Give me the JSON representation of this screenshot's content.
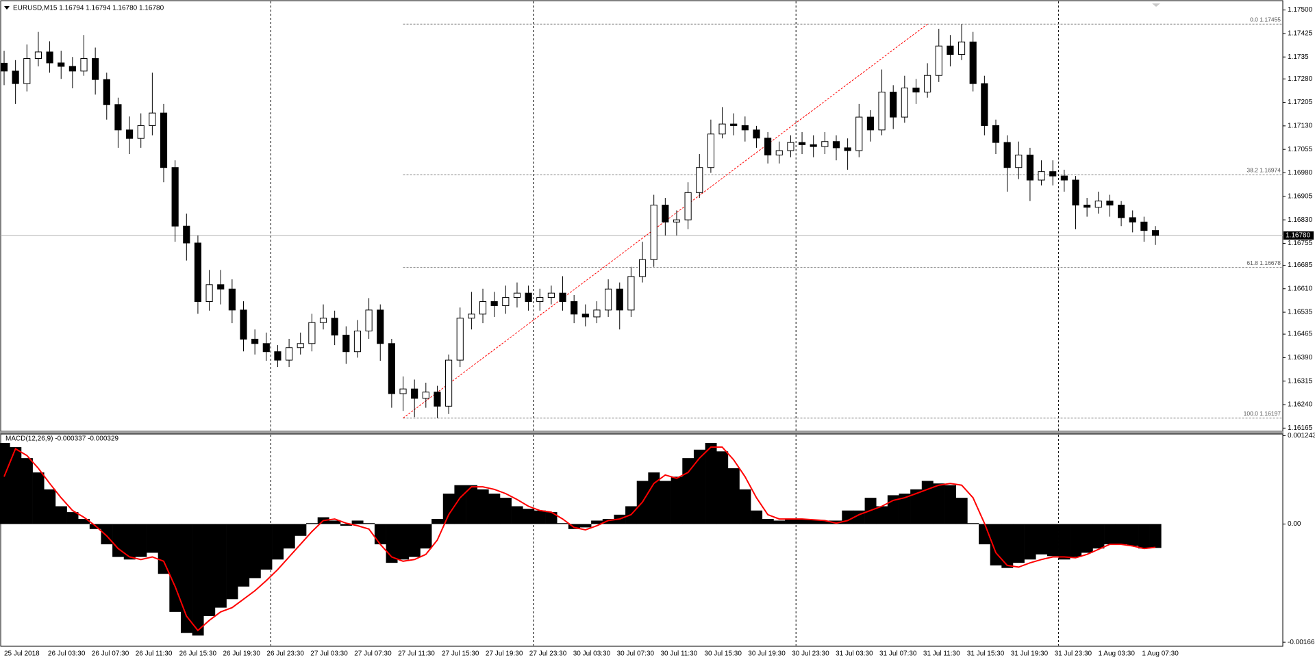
{
  "chart_data": [
    {
      "type": "candlestick",
      "title": "EURUSD,M15  1.16794 1.16794 1.16780 1.16780",
      "open": [
        1.1733,
        1.17305,
        1.17265,
        1.17345,
        1.17366,
        1.17331,
        1.1732,
        1.17305,
        1.17345,
        1.17278,
        1.17198,
        1.17117,
        1.1709,
        1.17131,
        1.17171,
        1.16997,
        1.1681,
        1.16756,
        1.16569,
        1.16623,
        1.16609,
        1.16542,
        1.16449,
        1.16435,
        1.16409,
        1.16382,
        1.16422,
        1.16435,
        1.16502,
        1.16516,
        1.16462,
        1.16409,
        1.16475,
        1.16542,
        1.16435,
        1.16275,
        1.1629,
        1.1626,
        1.1628,
        1.16235,
        1.16382,
        1.16516,
        1.16529,
        1.16569,
        1.16556,
        1.16582,
        1.16596,
        1.16569,
        1.16582,
        1.16596,
        1.16569,
        1.16529,
        1.1652,
        1.16542,
        1.16609,
        1.16542,
        1.16649,
        1.16703,
        1.16877,
        1.16823,
        1.1683,
        1.16917,
        1.16997,
        1.17104,
        1.17136,
        1.17131,
        1.17117,
        1.17091,
        1.17037,
        1.17051,
        1.17077,
        1.1707,
        1.17064,
        1.1708,
        1.1706,
        1.17051,
        1.17158,
        1.17117,
        1.17238,
        1.17158,
        1.17251,
        1.17238,
        1.17291,
        1.17385,
        1.17358,
        1.17398,
        1.17265,
        1.17131,
        1.17077,
        1.16997,
        1.17037,
        1.16957,
        1.16984,
        1.1697,
        1.16957,
        1.16877,
        1.1687,
        1.1689,
        1.16877,
        1.16837,
        1.16823,
        1.16796
      ],
      "high": [
        1.1737,
        1.1734,
        1.1739,
        1.1743,
        1.174,
        1.1737,
        1.1735,
        1.1742,
        1.1738,
        1.173,
        1.1722,
        1.1716,
        1.1717,
        1.173,
        1.172,
        1.1702,
        1.1685,
        1.1678,
        1.1667,
        1.1667,
        1.1664,
        1.1657,
        1.1648,
        1.1647,
        1.1643,
        1.1645,
        1.1647,
        1.1653,
        1.1656,
        1.1654,
        1.1649,
        1.1651,
        1.1658,
        1.1656,
        1.1645,
        1.1633,
        1.1632,
        1.1631,
        1.163,
        1.164,
        1.1655,
        1.166,
        1.1661,
        1.166,
        1.1662,
        1.1663,
        1.1662,
        1.1661,
        1.1662,
        1.1665,
        1.1659,
        1.1656,
        1.1657,
        1.1664,
        1.1663,
        1.1668,
        1.1676,
        1.1691,
        1.169,
        1.1686,
        1.1695,
        1.1704,
        1.1715,
        1.1719,
        1.1717,
        1.1716,
        1.1713,
        1.1711,
        1.1708,
        1.171,
        1.1711,
        1.171,
        1.1711,
        1.171,
        1.1709,
        1.172,
        1.1718,
        1.1731,
        1.1726,
        1.1729,
        1.1728,
        1.1733,
        1.1744,
        1.1742,
        1.17455,
        1.1743,
        1.1729,
        1.1715,
        1.171,
        1.1708,
        1.1706,
        1.1702,
        1.1702,
        1.1699,
        1.1697,
        1.169,
        1.1692,
        1.1691,
        1.1689,
        1.1686,
        1.1684,
        1.1681
      ],
      "low": [
        1.1726,
        1.172,
        1.1724,
        1.1732,
        1.173,
        1.1728,
        1.1725,
        1.1729,
        1.1723,
        1.1715,
        1.1706,
        1.1704,
        1.1706,
        1.171,
        1.1695,
        1.1676,
        1.167,
        1.1653,
        1.1654,
        1.1656,
        1.165,
        1.1641,
        1.164,
        1.1638,
        1.1636,
        1.1636,
        1.164,
        1.1641,
        1.1648,
        1.1643,
        1.1637,
        1.1639,
        1.1645,
        1.1638,
        1.1623,
        1.1622,
        1.162,
        1.1623,
        1.16197,
        1.1621,
        1.1636,
        1.1648,
        1.165,
        1.1652,
        1.1653,
        1.1655,
        1.1654,
        1.1654,
        1.1656,
        1.1654,
        1.165,
        1.1649,
        1.165,
        1.1652,
        1.1648,
        1.1652,
        1.1663,
        1.1668,
        1.1678,
        1.1678,
        1.168,
        1.169,
        1.1698,
        1.1709,
        1.171,
        1.1708,
        1.1706,
        1.1701,
        1.1701,
        1.1703,
        1.1704,
        1.1703,
        1.1704,
        1.1702,
        1.1699,
        1.1703,
        1.1708,
        1.171,
        1.1712,
        1.1714,
        1.172,
        1.1722,
        1.1727,
        1.1732,
        1.1734,
        1.1724,
        1.171,
        1.1704,
        1.1692,
        1.1696,
        1.1689,
        1.1694,
        1.1694,
        1.1692,
        1.168,
        1.1684,
        1.1685,
        1.1684,
        1.1681,
        1.1679,
        1.1676,
        1.1675
      ],
      "close": [
        1.17305,
        1.17265,
        1.17345,
        1.17366,
        1.17331,
        1.1732,
        1.17305,
        1.17345,
        1.17278,
        1.17198,
        1.17117,
        1.1709,
        1.17131,
        1.17171,
        1.16997,
        1.1681,
        1.16756,
        1.16569,
        1.16623,
        1.16609,
        1.16542,
        1.16449,
        1.16435,
        1.16409,
        1.16382,
        1.16422,
        1.16435,
        1.16502,
        1.16516,
        1.16462,
        1.16409,
        1.16475,
        1.16542,
        1.16435,
        1.16275,
        1.1629,
        1.1626,
        1.1628,
        1.16235,
        1.16382,
        1.16516,
        1.16529,
        1.16569,
        1.16556,
        1.16582,
        1.16596,
        1.16569,
        1.16582,
        1.16596,
        1.16569,
        1.16529,
        1.1652,
        1.16542,
        1.16609,
        1.16542,
        1.16649,
        1.16703,
        1.16877,
        1.16823,
        1.1683,
        1.16917,
        1.16997,
        1.17104,
        1.17136,
        1.17131,
        1.17117,
        1.17091,
        1.17037,
        1.17051,
        1.17077,
        1.1707,
        1.17064,
        1.1708,
        1.1706,
        1.17051,
        1.17158,
        1.17117,
        1.17238,
        1.17158,
        1.17251,
        1.17238,
        1.17291,
        1.17385,
        1.17358,
        1.17398,
        1.17265,
        1.17131,
        1.17077,
        1.16997,
        1.17037,
        1.16957,
        1.16984,
        1.1697,
        1.16957,
        1.16877,
        1.1687,
        1.1689,
        1.16877,
        1.16837,
        1.16823,
        1.16796,
        1.1678
      ],
      "bull_color": "#ffffff",
      "bear_color": "#000000",
      "ylim": [
        1.16157,
        1.17521
      ],
      "yticks": [
        {
          "value": 1.175,
          "label": "1.17500"
        },
        1.17425,
        1.1735,
        {
          "value": 1.1728,
          "label": "1.17280"
        },
        1.17205,
        {
          "value": 1.1713,
          "label": "1.17130"
        },
        1.17055,
        {
          "value": 1.1698,
          "label": "1.16980"
        },
        1.16905,
        {
          "value": 1.1683,
          "label": "1.16830"
        },
        1.16755,
        1.16685,
        {
          "value": 1.1661,
          "label": "1.16610"
        },
        1.16535,
        1.16465,
        {
          "value": 1.1639,
          "label": "1.16390"
        },
        1.16315,
        {
          "value": 1.1624,
          "label": "1.16240"
        },
        1.16165
      ],
      "fibonacci": {
        "x_start": 35,
        "color": "#808080",
        "levels": [
          {
            "value": 1.17455,
            "label": "0.0 1.17455"
          },
          {
            "value": 1.16974,
            "label": "38.2 1.16974"
          },
          {
            "value": 1.16678,
            "label": "61.8 1.16678"
          },
          {
            "value": 1.16197,
            "label": "100.0 1.16197"
          }
        ]
      },
      "trendline": {
        "x": [
          35,
          81
        ],
        "y": [
          1.16197,
          1.17455
        ],
        "color": "#ff0000"
      },
      "current_price": {
        "value": 1.1678,
        "label": "1.16780"
      },
      "time_labels": [
        "25 Jul 2018",
        "26 Jul 03:30",
        "26 Jul 07:30",
        "26 Jul 11:30",
        "26 Jul 15:30",
        "26 Jul 19:30",
        "26 Jul 23:30",
        "27 Jul 03:30",
        "27 Jul 07:30",
        "27 Jul 11:30",
        "27 Jul 15:30",
        "27 Jul 19:30",
        "27 Jul 23:30",
        "30 Jul 03:30",
        "30 Jul 07:30",
        "30 Jul 11:30",
        "30 Jul 15:30",
        "30 Jul 19:30",
        "30 Jul 23:30",
        "31 Jul 03:30",
        "31 Jul 07:30",
        "31 Jul 11:30",
        "31 Jul 15:30",
        "31 Jul 19:30",
        "31 Jul 23:30",
        "1 Aug 03:30",
        "1 Aug 07:30"
      ]
    },
    {
      "type": "macd",
      "title": "MACD(12,26,9) -0.000337 -0.000329",
      "histogram": {
        "color": "#000000",
        "values": [
          0.001142,
          0.001083,
          0.000928,
          0.000726,
          0.000488,
          0.00025,
          0.000167,
          7.1e-05,
          -7.1e-05,
          -0.000286,
          -0.000464,
          -0.0005,
          -0.000464,
          -0.000405,
          -0.000702,
          -0.001238,
          -0.001535,
          -0.001571,
          -0.001297,
          -0.001178,
          -0.001059,
          -0.000881,
          -0.000762,
          -0.000643,
          -0.0005,
          -0.000345,
          -0.000167,
          1.2e-05,
          9.5e-05,
          4.8e-05,
          -2.4e-05,
          4.8e-05,
          1.2e-05,
          -0.000286,
          -0.000547,
          -0.0005,
          -0.000464,
          -0.000345,
          7.1e-05,
          0.000428,
          0.000547,
          0.000547,
          0.000488,
          0.000428,
          0.000369,
          0.00025,
          0.000214,
          0.00019,
          0.000167,
          1.2e-05,
          -7.1e-05,
          -4.8e-05,
          4.8e-05,
          7.1e-05,
          0.000131,
          0.00025,
          0.000607,
          0.000726,
          0.000607,
          0.000666,
          0.000928,
          0.001047,
          0.001142,
          0.001023,
          0.000785,
          0.000488,
          0.00019,
          7.1e-05,
          4.8e-05,
          7.1e-05,
          7.1e-05,
          6e-05,
          4.8e-05,
          4.8e-05,
          0.00019,
          0.00019,
          0.000369,
          0.00025,
          0.000405,
          0.000428,
          0.000488,
          0.000607,
          0.000571,
          0.000547,
          0.000369,
          1.2e-05,
          -0.000286,
          -0.000583,
          -0.000619,
          -0.000547,
          -0.0005,
          -0.000428,
          -0.000452,
          -0.0005,
          -0.000464,
          -0.000405,
          -0.000345,
          -0.000286,
          -0.000286,
          -0.000309,
          -0.000345,
          -0.000337
        ]
      },
      "signal": {
        "color": "#ff0000",
        "values": [
          0.000666,
          0.001059,
          0.000964,
          0.000785,
          0.000571,
          0.000369,
          0.00019,
          9.5e-05,
          -2.4e-05,
          -0.000167,
          -0.000345,
          -0.000464,
          -0.0005,
          -0.000464,
          -0.000524,
          -0.000881,
          -0.001297,
          -0.001499,
          -0.001357,
          -0.001238,
          -0.001178,
          -0.001059,
          -0.00094,
          -0.000797,
          -0.000643,
          -0.000464,
          -0.000286,
          -0.000107,
          4.8e-05,
          7.1e-05,
          1.2e-05,
          -2.4e-05,
          -7.1e-05,
          -0.000286,
          -0.000464,
          -0.000524,
          -0.0005,
          -0.000428,
          -0.000226,
          0.000131,
          0.000369,
          0.000524,
          0.000524,
          0.000488,
          0.000428,
          0.000345,
          0.00025,
          0.00019,
          0.000167,
          7.1e-05,
          -4.8e-05,
          -8.3e-05,
          -2.4e-05,
          4.8e-05,
          7.1e-05,
          0.000131,
          0.000309,
          0.000571,
          0.00069,
          0.000643,
          0.000726,
          0.000928,
          0.001083,
          0.001083,
          0.000904,
          0.000666,
          0.000369,
          0.000131,
          7.1e-05,
          7.1e-05,
          7.1e-05,
          6e-05,
          4.8e-05,
          1.2e-05,
          4.8e-05,
          0.000131,
          0.00019,
          0.00025,
          0.000333,
          0.000369,
          0.000428,
          0.000488,
          0.000547,
          0.000571,
          0.000547,
          0.000369,
          1.2e-05,
          -0.000405,
          -0.000583,
          -0.000607,
          -0.000547,
          -0.0005,
          -0.000464,
          -0.000464,
          -0.000476,
          -0.000428,
          -0.000357,
          -0.000286,
          -0.000286,
          -0.000309,
          -0.000345,
          -0.000329
        ]
      },
      "ylim": [
        -0.001712,
        0.001267
      ],
      "yticks": [
        0.001243,
        {
          "value": 0,
          "label": "0.00"
        },
        -0.001665
      ]
    }
  ]
}
